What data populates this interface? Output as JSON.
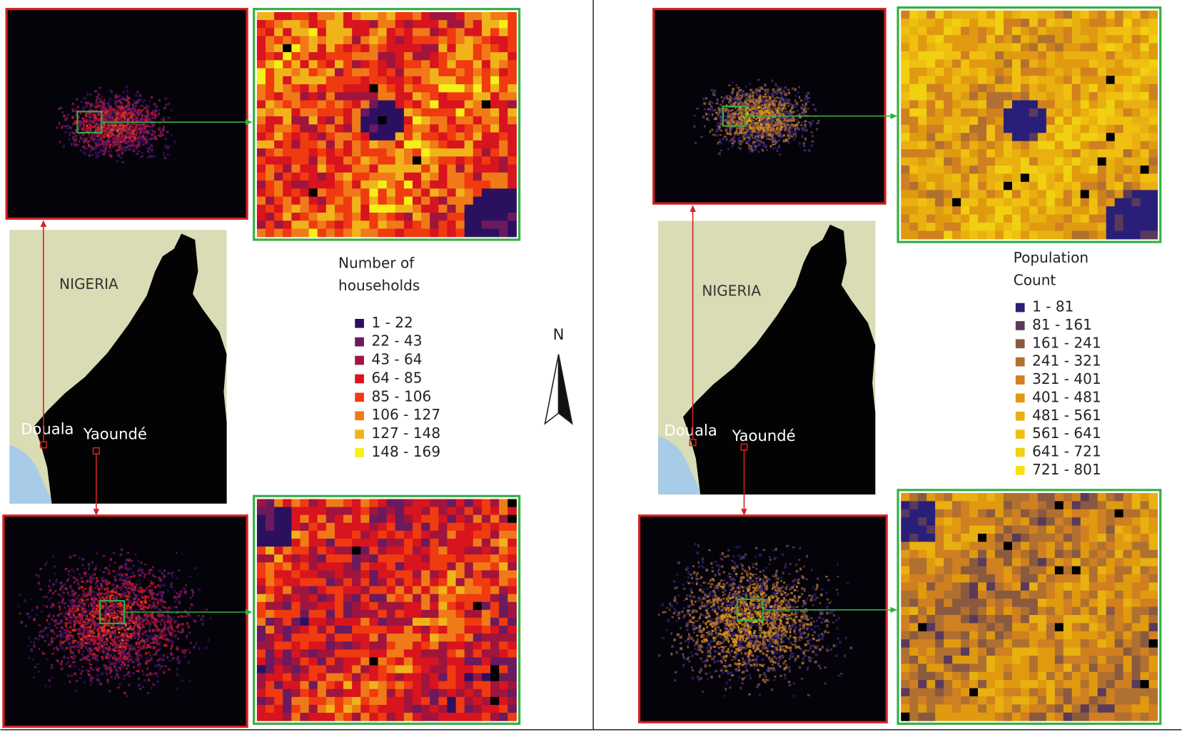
{
  "left": {
    "legend": {
      "title": [
        "Number of",
        "households"
      ],
      "items": [
        {
          "label": "1 - 22",
          "color": "#2c1060"
        },
        {
          "label": "22 - 43",
          "color": "#6b1a5e"
        },
        {
          "label": "43 - 64",
          "color": "#a0153e"
        },
        {
          "label": "64 - 85",
          "color": "#d8141e"
        },
        {
          "label": "85 - 106",
          "color": "#f03a10"
        },
        {
          "label": "106 - 127",
          "color": "#f07a18"
        },
        {
          "label": "127 - 148",
          "color": "#f0b41a"
        },
        {
          "label": "148 - 169",
          "color": "#f4f018"
        }
      ]
    },
    "map_labels": {
      "country": "NIGERIA",
      "city_1": "Douala",
      "city_2": "Yaoundé"
    }
  },
  "right": {
    "legend": {
      "title": [
        "Population",
        "Count"
      ],
      "items": [
        {
          "label": "1 - 81",
          "color": "#2a1f78"
        },
        {
          "label": "81 - 161",
          "color": "#5a3a5a"
        },
        {
          "label": "161 - 241",
          "color": "#8a5a40"
        },
        {
          "label": "241 - 321",
          "color": "#b07030"
        },
        {
          "label": "321 - 401",
          "color": "#d08020"
        },
        {
          "label": "401 - 481",
          "color": "#e09a10"
        },
        {
          "label": "481 - 561",
          "color": "#e8b010"
        },
        {
          "label": "561 - 641",
          "color": "#f0c010"
        },
        {
          "label": "641 - 721",
          "color": "#f0d010"
        },
        {
          "label": "721 - 801",
          "color": "#f8e010"
        }
      ]
    },
    "map_labels": {
      "country": "NIGERIA",
      "city_1": "Douala",
      "city_2": "Yaoundé"
    }
  },
  "north_arrow": "N"
}
